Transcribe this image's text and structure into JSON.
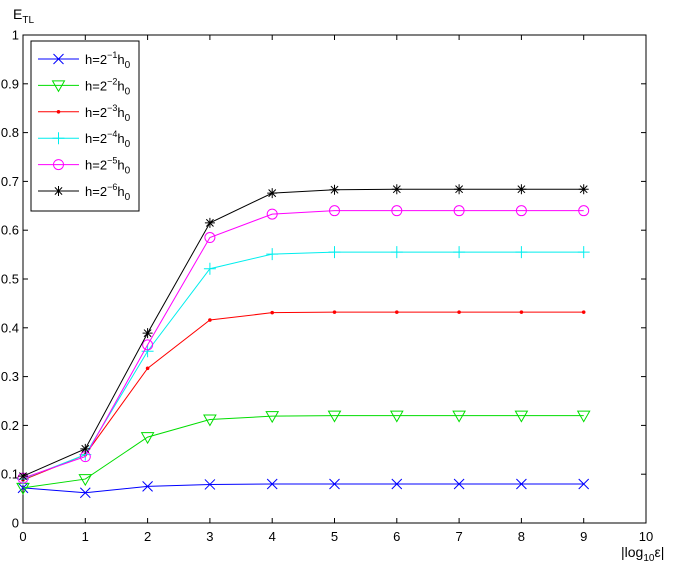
{
  "chart_data": {
    "type": "line",
    "title": "",
    "ylabel": {
      "main": "E",
      "sub": "TL"
    },
    "xlabel": {
      "pre": "|log",
      "sub": "10",
      "post": "ε|"
    },
    "xlim": [
      0,
      10
    ],
    "ylim": [
      0,
      1
    ],
    "xticks": [
      0,
      1,
      2,
      3,
      4,
      5,
      6,
      7,
      8,
      9,
      10
    ],
    "yticks": [
      0,
      0.1,
      0.2,
      0.3,
      0.4,
      0.5,
      0.6,
      0.7,
      0.8,
      0.9,
      1
    ],
    "xtick_labels": [
      "0",
      "1",
      "2",
      "3",
      "4",
      "5",
      "6",
      "7",
      "8",
      "9",
      "10"
    ],
    "ytick_labels": [
      "0",
      "0.1",
      "0.2",
      "0.3",
      "0.4",
      "0.5",
      "0.6",
      "0.7",
      "0.8",
      "0.9",
      "1"
    ],
    "grid": false,
    "legend_position": "top-left",
    "x": [
      0,
      1,
      2,
      3,
      4,
      5,
      6,
      7,
      8,
      9
    ],
    "series": [
      {
        "name": "h=2^{-1}h_0",
        "label": {
          "pre": "h=2",
          "sup": "−1",
          "mid": "h",
          "sub": "0"
        },
        "color": "#0000ff",
        "marker": "x",
        "values": [
          0.072,
          0.062,
          0.075,
          0.079,
          0.08,
          0.08,
          0.08,
          0.08,
          0.08,
          0.08
        ]
      },
      {
        "name": "h=2^{-2}h_0",
        "label": {
          "pre": "h=2",
          "sup": "−2",
          "mid": "h",
          "sub": "0"
        },
        "color": "#00dd00",
        "marker": "triangle-down",
        "values": [
          0.072,
          0.09,
          0.176,
          0.212,
          0.219,
          0.22,
          0.22,
          0.22,
          0.22,
          0.22
        ]
      },
      {
        "name": "h=2^{-3}h_0",
        "label": {
          "pre": "h=2",
          "sup": "−3",
          "mid": "h",
          "sub": "0"
        },
        "color": "#ff0000",
        "marker": "point",
        "values": [
          0.088,
          0.14,
          0.317,
          0.416,
          0.431,
          0.432,
          0.432,
          0.432,
          0.432,
          0.432
        ]
      },
      {
        "name": "h=2^{-4}h_0",
        "label": {
          "pre": "h=2",
          "sup": "−4",
          "mid": "h",
          "sub": "0"
        },
        "color": "#00eeee",
        "marker": "plus",
        "values": [
          0.09,
          0.14,
          0.352,
          0.521,
          0.551,
          0.555,
          0.555,
          0.555,
          0.555,
          0.555
        ]
      },
      {
        "name": "h=2^{-5}h_0",
        "label": {
          "pre": "h=2",
          "sup": "−5",
          "mid": "h",
          "sub": "0"
        },
        "color": "#ff00ff",
        "marker": "circle",
        "values": [
          0.092,
          0.136,
          0.365,
          0.585,
          0.633,
          0.64,
          0.64,
          0.64,
          0.64,
          0.64
        ]
      },
      {
        "name": "h=2^{-6}h_0",
        "label": {
          "pre": "h=2",
          "sup": "−6",
          "mid": "h",
          "sub": "0"
        },
        "color": "#000000",
        "marker": "asterisk",
        "values": [
          0.096,
          0.152,
          0.389,
          0.615,
          0.676,
          0.683,
          0.684,
          0.684,
          0.684,
          0.684
        ]
      }
    ]
  }
}
